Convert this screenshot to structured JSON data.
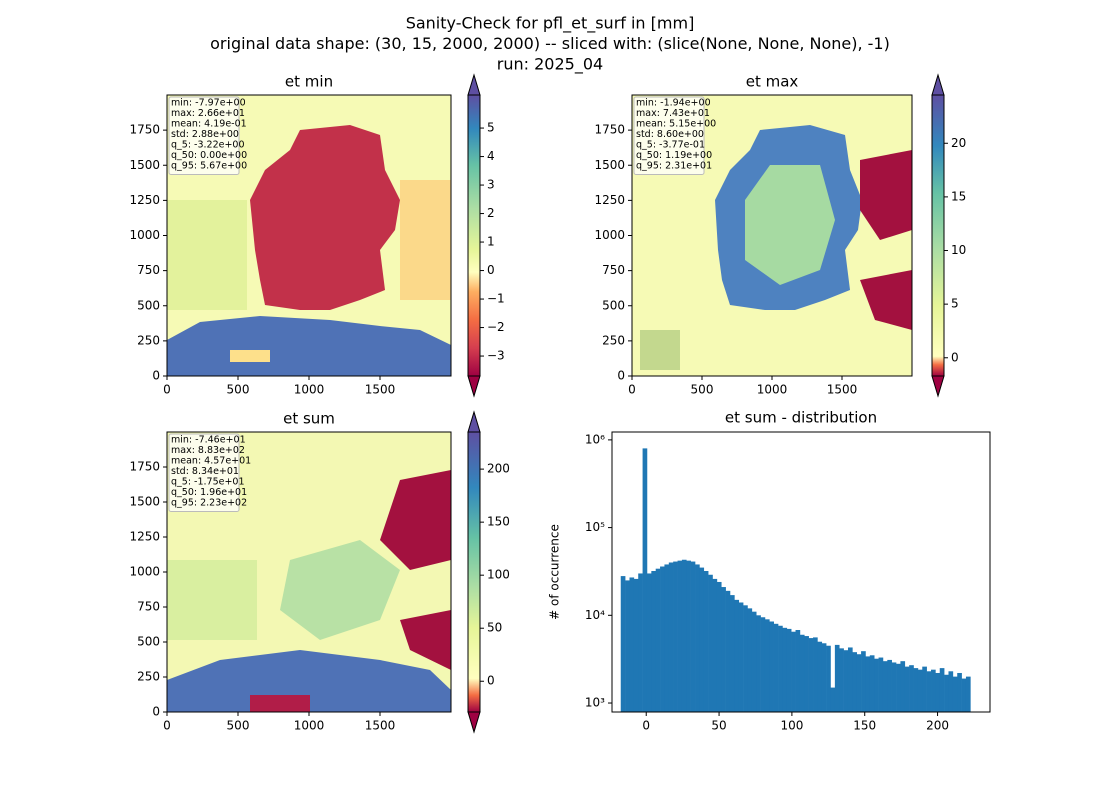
{
  "title": [
    "Sanity-Check for pfl_et_surf in [mm]",
    "original data shape: (30, 15, 2000, 2000) -- sliced with: (slice(None, None, None), -1)",
    "run: 2025_04"
  ],
  "chart_data": [
    {
      "type": "image",
      "title": "et min",
      "stats": [
        "min: -7.97e+00",
        "max: 2.66e+01",
        "mean: 4.19e-01",
        "std: 2.88e+00",
        "q_5: -3.22e+00",
        "q_50: 0.00e+00",
        "q_95: 5.67e+00"
      ],
      "xlim": [
        0,
        2000
      ],
      "xticks": [
        0,
        500,
        1000,
        1500
      ],
      "ylim": [
        0,
        2000
      ],
      "yticks": [
        0,
        250,
        500,
        750,
        1000,
        1250,
        1500,
        1750
      ],
      "colorbar": {
        "ylim": [
          -3.7,
          6.16
        ],
        "yticks": [
          {
            "value": -3,
            "label": "−3"
          },
          {
            "value": -2,
            "label": "−2"
          },
          {
            "value": -1,
            "label": "−1"
          },
          0,
          1,
          2,
          3,
          4,
          5
        ]
      }
    },
    {
      "type": "image",
      "title": "et max",
      "stats": [
        "min: -1.94e+00",
        "max: 7.43e+01",
        "mean: 5.15e+00",
        "std: 8.60e+00",
        "q_5: -3.77e-01",
        "q_50: 1.19e+00",
        "q_95: 2.31e+01"
      ],
      "xlim": [
        0,
        2000
      ],
      "xticks": [
        0,
        500,
        1000,
        1500
      ],
      "ylim": [
        0,
        2000
      ],
      "yticks": [
        0,
        250,
        500,
        750,
        1000,
        1250,
        1500,
        1750
      ],
      "colorbar": {
        "ylim": [
          -1.7,
          24.5
        ],
        "yticks": [
          0,
          5,
          10,
          15,
          20
        ]
      }
    },
    {
      "type": "image",
      "title": "et sum",
      "stats": [
        "min: -7.46e+01",
        "max: 8.83e+02",
        "mean: 4.57e+01",
        "std: 8.34e+01",
        "q_5: -1.75e+01",
        "q_50: 1.96e+01",
        "q_95: 2.23e+02"
      ],
      "xlim": [
        0,
        2000
      ],
      "xticks": [
        0,
        500,
        1000,
        1500
      ],
      "ylim": [
        0,
        2000
      ],
      "yticks": [
        0,
        250,
        500,
        750,
        1000,
        1250,
        1500,
        1750
      ],
      "colorbar": {
        "ylim": [
          -29,
          235
        ],
        "yticks": [
          0,
          50,
          100,
          150,
          200
        ]
      }
    },
    {
      "type": "histogram",
      "title": "et sum - distribution",
      "ylabel": "# of occurrence",
      "color": "#1f77b4",
      "log": true,
      "bins": [
        -17.5,
        -14.5,
        -11.5,
        -8.5,
        -5.5,
        -2.5,
        0.5,
        3.5,
        6.5,
        9.5,
        12.5,
        15.5,
        18.5,
        21.5,
        24.5,
        27.5,
        30.5,
        33.5,
        36.5,
        39.5,
        42.5,
        45.5,
        48.5,
        51.5,
        54.5,
        57.5,
        60.5,
        63.5,
        66.5,
        69.5,
        72.5,
        75.5,
        78.5,
        81.5,
        84.5,
        87.5,
        90.5,
        93.5,
        96.5,
        99.5,
        102.5,
        105.5,
        108.5,
        111.5,
        114.5,
        117.5,
        120.5,
        123.5,
        126.5,
        129.5,
        132.5,
        135.5,
        138.5,
        141.5,
        144.5,
        147.5,
        150.5,
        153.5,
        156.5,
        159.5,
        162.5,
        165.5,
        168.5,
        171.5,
        174.5,
        177.5,
        180.5,
        183.5,
        186.5,
        189.5,
        192.5,
        195.5,
        198.5,
        201.5,
        204.5,
        207.5,
        210.5,
        213.5,
        216.5,
        219.5,
        222.5
      ],
      "values": [
        28000,
        25000,
        27000,
        26000,
        30000,
        800000,
        30000,
        32000,
        34000,
        36000,
        38000,
        40000,
        41000,
        42000,
        43000,
        42000,
        41000,
        38000,
        35000,
        32000,
        29000,
        26000,
        24000,
        21000,
        19000,
        17000,
        15000,
        14000,
        13000,
        12000,
        11000,
        10000,
        9500,
        9000,
        8500,
        8000,
        7600,
        7200,
        7000,
        6500,
        6800,
        6000,
        5800,
        5500,
        5600,
        5000,
        4800,
        4500,
        1500,
        4600,
        4200,
        4000,
        4300,
        3800,
        3600,
        3900,
        3400,
        3500,
        3200,
        3300,
        3000,
        3100,
        2900,
        2800,
        3000,
        2600,
        2700,
        2500,
        2400,
        2600,
        2300,
        2400,
        2200,
        2500,
        2100,
        2300,
        2000,
        2200,
        1900,
        2000
      ],
      "xlim": [
        -23.5,
        236
      ],
      "xticks": [
        0,
        50,
        100,
        150,
        200
      ],
      "ylim": [
        790,
        1230000
      ],
      "yticks": [
        {
          "value": 1000,
          "label": "10³"
        },
        {
          "value": 10000,
          "label": "10⁴"
        },
        {
          "value": 100000,
          "label": "10⁵"
        },
        {
          "value": 1000000,
          "label": "10⁶"
        }
      ]
    }
  ]
}
